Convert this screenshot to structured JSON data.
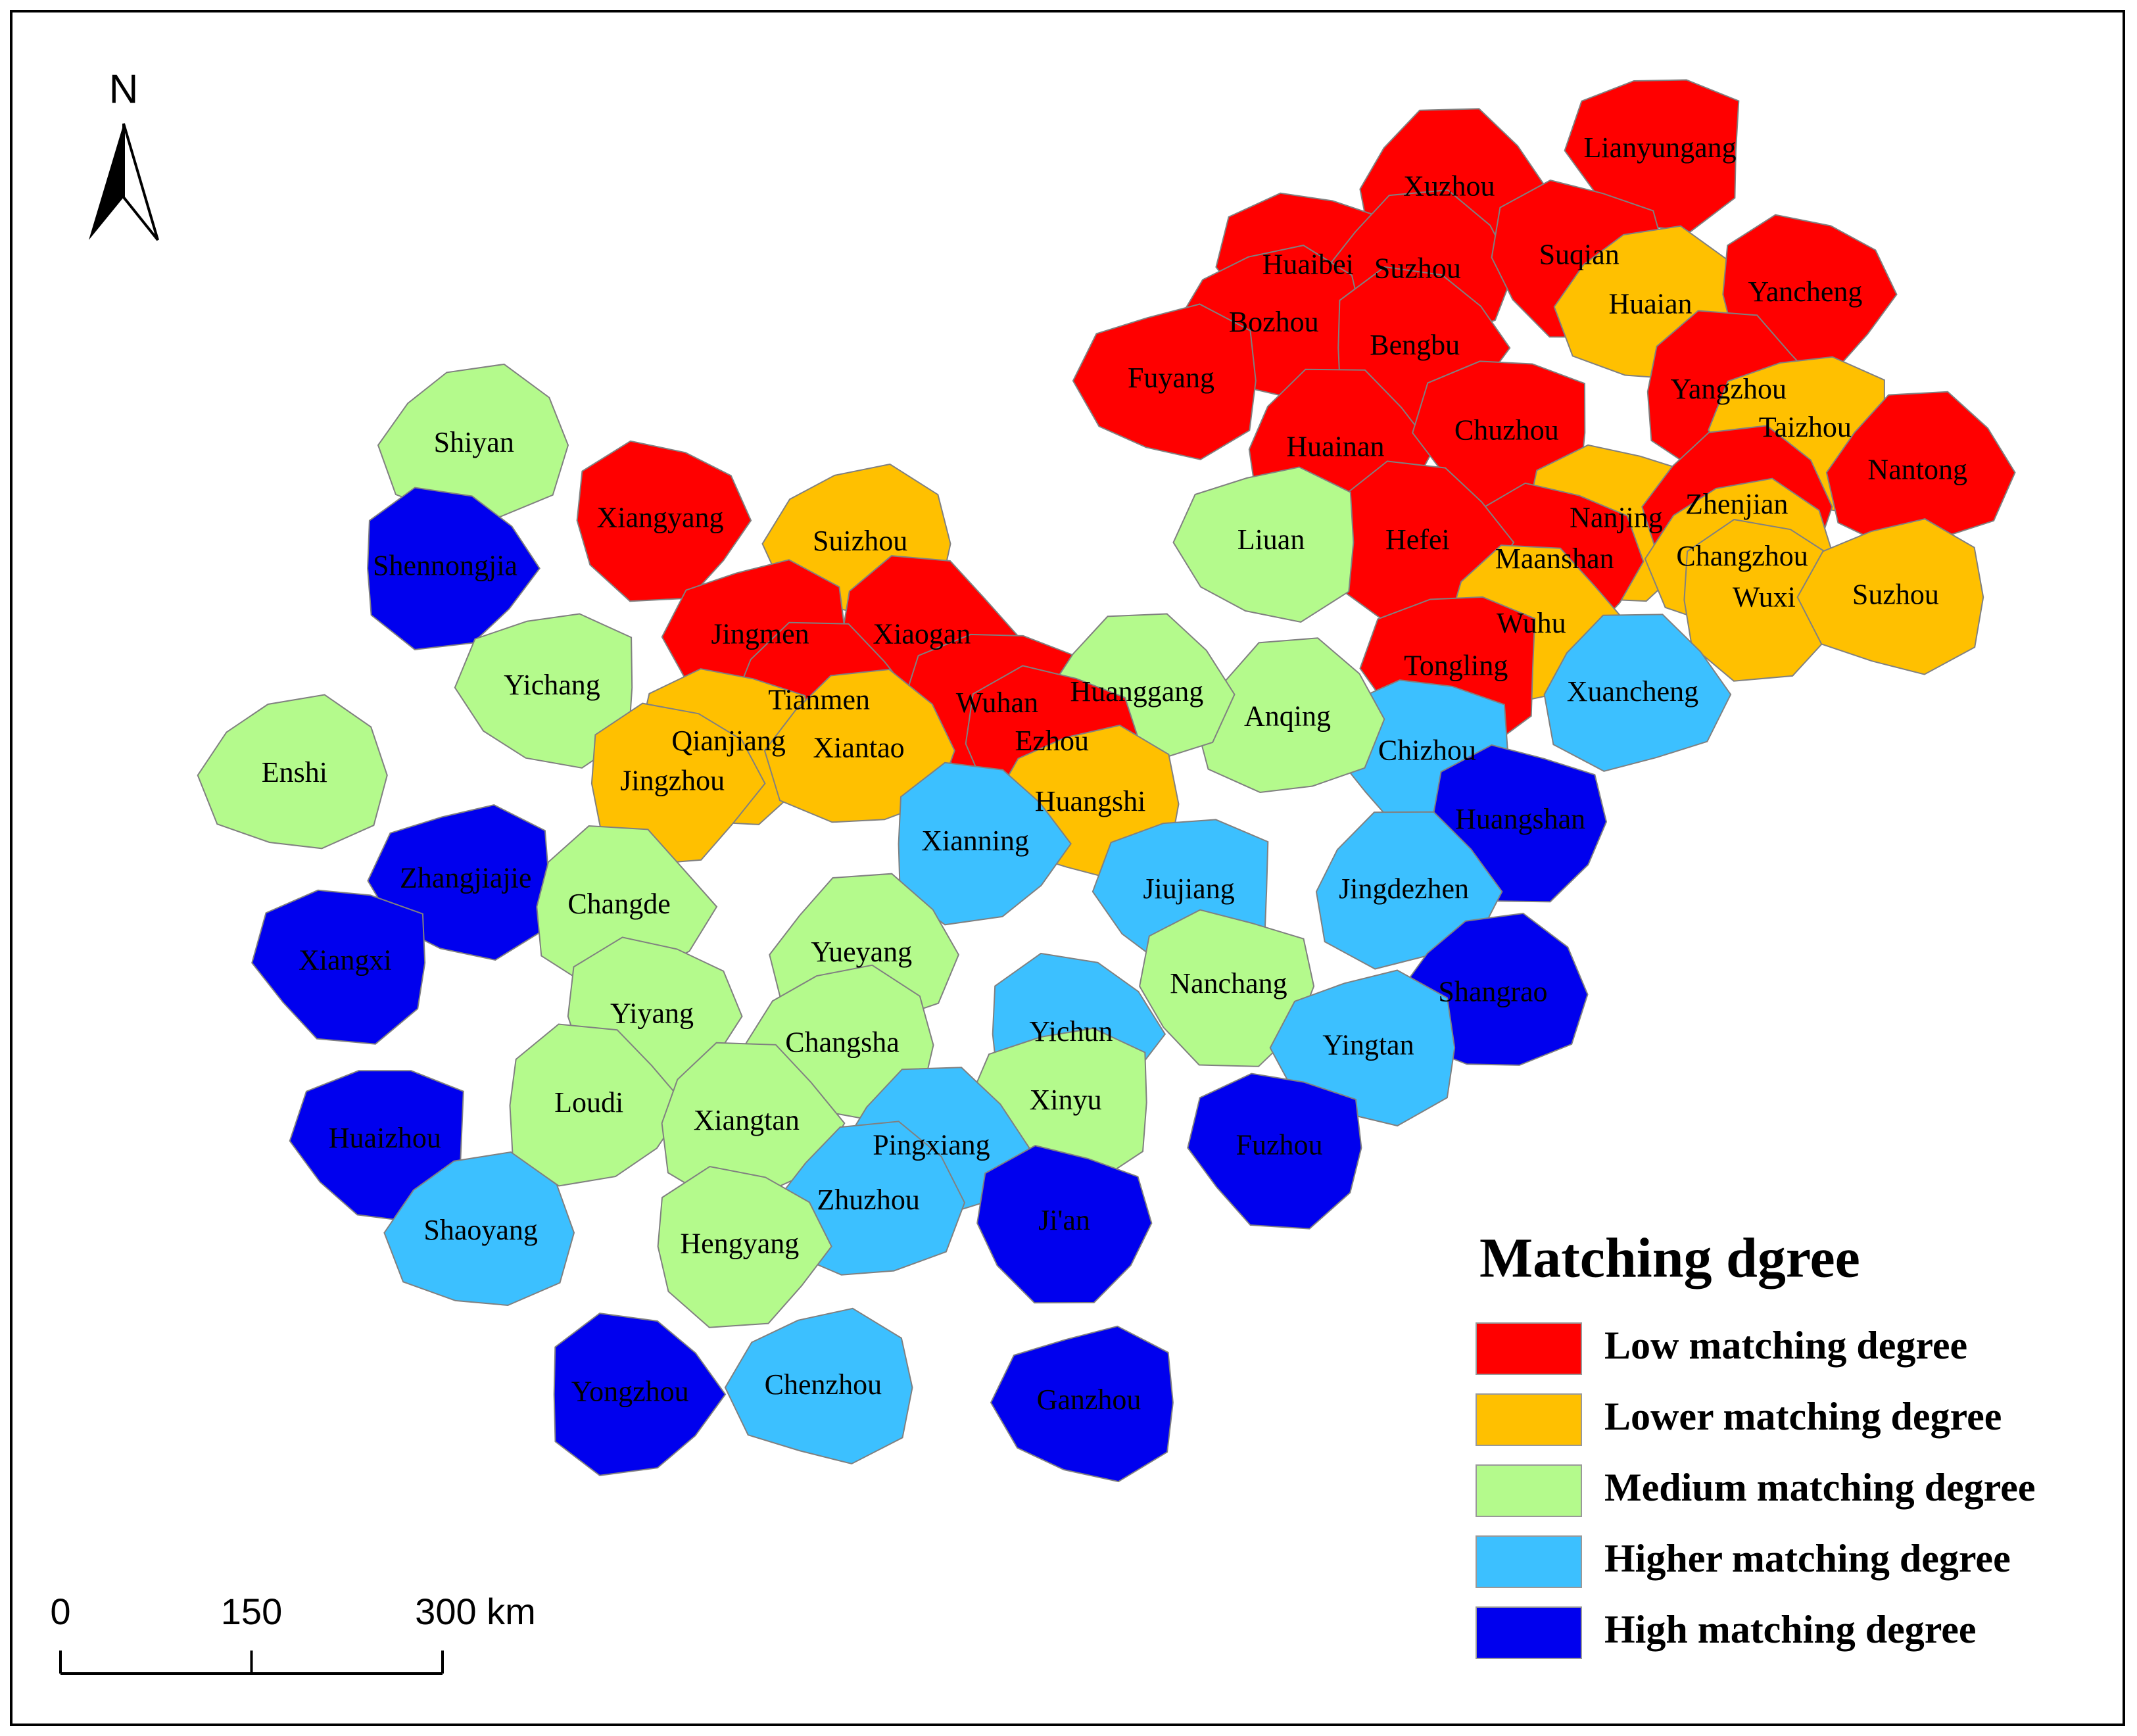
{
  "north_label": "N",
  "legend": {
    "title": "Matching dgree",
    "items": [
      {
        "label": "Low matching degree",
        "color": "#ff0000"
      },
      {
        "label": "Lower matching degree",
        "color": "#ffc000"
      },
      {
        "label": "Medium matching degree",
        "color": "#b4fa8c"
      },
      {
        "label": "Higher matching degree",
        "color": "#3cc0ff"
      },
      {
        "label": "High matching degree",
        "color": "#0000ee"
      }
    ]
  },
  "scale_bar": {
    "ticks": [
      0,
      150,
      {
        "value": 300,
        "label": "300 km"
      }
    ]
  },
  "cities": [
    {
      "name": "Lianyungang",
      "degree": "Low matching degree"
    },
    {
      "name": "Xuzhou",
      "degree": "Low matching degree"
    },
    {
      "name": "Huaibei",
      "degree": "Low matching degree"
    },
    {
      "name": "Suzhou",
      "degree": "Low matching degree"
    },
    {
      "name": "Suqian",
      "degree": "Low matching degree"
    },
    {
      "name": "Huaian",
      "degree": "Lower matching degree"
    },
    {
      "name": "Yancheng",
      "degree": "Low matching degree"
    },
    {
      "name": "Bozhou",
      "degree": "Low matching degree"
    },
    {
      "name": "Bengbu",
      "degree": "Low matching degree"
    },
    {
      "name": "Fuyang",
      "degree": "Low matching degree"
    },
    {
      "name": "Yangzhou",
      "degree": "Low matching degree"
    },
    {
      "name": "Taizhou",
      "degree": "Lower matching degree"
    },
    {
      "name": "Huainan",
      "degree": "Low matching degree"
    },
    {
      "name": "Chuzhou",
      "degree": "Low matching degree"
    },
    {
      "name": "Nantong",
      "degree": "Low matching degree"
    },
    {
      "name": "Nanjing",
      "degree": "Lower matching degree"
    },
    {
      "name": "Zhenjian",
      "degree": "Low matching degree"
    },
    {
      "name": "Maanshan",
      "degree": "Low matching degree"
    },
    {
      "name": "Changzhou",
      "degree": "Lower matching degree"
    },
    {
      "name": "Wuxi",
      "degree": "Lower matching degree"
    },
    {
      "name": "Suzhou",
      "degree": "Lower matching degree"
    },
    {
      "name": "Hefei",
      "degree": "Low matching degree"
    },
    {
      "name": "Liuan",
      "degree": "Medium matching degree"
    },
    {
      "name": "Wuhu",
      "degree": "Lower matching degree"
    },
    {
      "name": "Tongling",
      "degree": "Low matching degree"
    },
    {
      "name": "Xuancheng",
      "degree": "Higher matching degree"
    },
    {
      "name": "Chizhou",
      "degree": "Higher matching degree"
    },
    {
      "name": "Anqing",
      "degree": "Medium matching degree"
    },
    {
      "name": "Huangshan",
      "degree": "High matching degree"
    },
    {
      "name": "Shiyan",
      "degree": "Medium matching degree"
    },
    {
      "name": "Xiangyang",
      "degree": "Low matching degree"
    },
    {
      "name": "Suizhou",
      "degree": "Lower matching degree"
    },
    {
      "name": "Shennongjia",
      "degree": "High matching degree"
    },
    {
      "name": "Jingmen",
      "degree": "Low matching degree"
    },
    {
      "name": "Xiaogan",
      "degree": "Low matching degree"
    },
    {
      "name": "Yichang",
      "degree": "Medium matching degree"
    },
    {
      "name": "Tianmen",
      "degree": "Low matching degree"
    },
    {
      "name": "Wuhan",
      "degree": "Low matching degree"
    },
    {
      "name": "Huanggang",
      "degree": "Medium matching degree"
    },
    {
      "name": "Qianjiang",
      "degree": "Lower matching degree"
    },
    {
      "name": "Xiantao",
      "degree": "Lower matching degree"
    },
    {
      "name": "Ezhou",
      "degree": "Low matching degree"
    },
    {
      "name": "Enshi",
      "degree": "Medium matching degree"
    },
    {
      "name": "Jingzhou",
      "degree": "Lower matching degree"
    },
    {
      "name": "Huangshi",
      "degree": "Lower matching degree"
    },
    {
      "name": "Xianning",
      "degree": "Higher matching degree"
    },
    {
      "name": "Zhangjiajie",
      "degree": "High matching degree"
    },
    {
      "name": "Changde",
      "degree": "Medium matching degree"
    },
    {
      "name": "Jiujiang",
      "degree": "Higher matching degree"
    },
    {
      "name": "Jingdezhen",
      "degree": "Higher matching degree"
    },
    {
      "name": "Xiangxi",
      "degree": "High matching degree"
    },
    {
      "name": "Yueyang",
      "degree": "Medium matching degree"
    },
    {
      "name": "Nanchang",
      "degree": "Medium matching degree"
    },
    {
      "name": "Shangrao",
      "degree": "High matching degree"
    },
    {
      "name": "Yiyang",
      "degree": "Medium matching degree"
    },
    {
      "name": "Changsha",
      "degree": "Medium matching degree"
    },
    {
      "name": "Yichun",
      "degree": "Higher matching degree"
    },
    {
      "name": "Yingtan",
      "degree": "Higher matching degree"
    },
    {
      "name": "Loudi",
      "degree": "Medium matching degree"
    },
    {
      "name": "Xinyu",
      "degree": "Medium matching degree"
    },
    {
      "name": "Xiangtan",
      "degree": "Medium matching degree"
    },
    {
      "name": "Huaizhou",
      "degree": "High matching degree"
    },
    {
      "name": "Pingxiang",
      "degree": "Higher matching degree"
    },
    {
      "name": "Fuzhou",
      "degree": "High matching degree"
    },
    {
      "name": "Zhuzhou",
      "degree": "Higher matching degree"
    },
    {
      "name": "Ji'an",
      "degree": "High matching degree"
    },
    {
      "name": "Shaoyang",
      "degree": "Higher matching degree"
    },
    {
      "name": "Hengyang",
      "degree": "Medium matching degree"
    },
    {
      "name": "Chenzhou",
      "degree": "Higher matching degree"
    },
    {
      "name": "Yongzhou",
      "degree": "High matching degree"
    },
    {
      "name": "Ganzhou",
      "degree": "High matching degree"
    }
  ]
}
